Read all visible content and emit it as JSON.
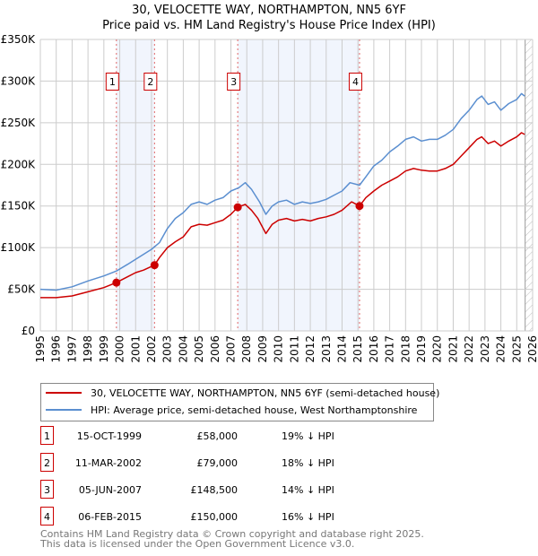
{
  "chart_data": {
    "type": "line",
    "title": "30, VELOCETTE WAY, NORTHAMPTON, NN5 6YF",
    "subtitle": "Price paid vs. HM Land Registry's House Price Index (HPI)",
    "xlabel": "",
    "ylabel": "",
    "xlim": [
      1995,
      2026
    ],
    "ylim": [
      0,
      350000
    ],
    "grid": true,
    "x_ticks": [
      "1995",
      "1996",
      "1997",
      "1998",
      "1999",
      "2000",
      "2001",
      "2002",
      "2003",
      "2004",
      "2005",
      "2006",
      "2007",
      "2008",
      "2009",
      "2010",
      "2011",
      "2012",
      "2013",
      "2014",
      "2015",
      "2016",
      "2017",
      "2018",
      "2019",
      "2020",
      "2021",
      "2022",
      "2023",
      "2024",
      "2025",
      "2026"
    ],
    "y_ticks": [
      {
        "value": 0,
        "label": "£0"
      },
      {
        "value": 50000,
        "label": "£50K"
      },
      {
        "value": 100000,
        "label": "£100K"
      },
      {
        "value": 150000,
        "label": "£150K"
      },
      {
        "value": 200000,
        "label": "£200K"
      },
      {
        "value": 250000,
        "label": "£250K"
      },
      {
        "value": 300000,
        "label": "£300K"
      },
      {
        "value": 350000,
        "label": "£350K"
      }
    ],
    "forecast_start": 2025.53,
    "series": [
      {
        "name": "30, VELOCETTE WAY, NORTHAMPTON, NN5 6YF (semi-detached house)",
        "color": "#cc0000",
        "x": [
          1995,
          1996,
          1997,
          1998,
          1999,
          1999.79,
          2000.5,
          2001,
          2001.5,
          2002.19,
          2002.5,
          2003,
          2003.5,
          2004,
          2004.5,
          2005,
          2005.5,
          2006,
          2006.5,
          2007,
          2007.43,
          2007.9,
          2008.3,
          2008.7,
          2009.2,
          2009.6,
          2010,
          2010.5,
          2011,
          2011.5,
          2012,
          2012.5,
          2013,
          2013.5,
          2014,
          2014.6,
          2015.1,
          2015.5,
          2016,
          2016.5,
          2017,
          2017.5,
          2018,
          2018.5,
          2019,
          2019.5,
          2020,
          2020.5,
          2021,
          2021.5,
          2022,
          2022.5,
          2022.8,
          2023.2,
          2023.6,
          2024,
          2024.5,
          2025,
          2025.3,
          2025.5
        ],
        "values": [
          40000,
          40000,
          42000,
          47000,
          52000,
          58000,
          65000,
          70000,
          73000,
          79000,
          88000,
          100000,
          107000,
          113000,
          125000,
          128000,
          127000,
          130000,
          133000,
          140000,
          148500,
          152000,
          145000,
          135000,
          117000,
          128000,
          133000,
          135000,
          132000,
          134000,
          132000,
          135000,
          137000,
          140000,
          145000,
          155000,
          150000,
          160000,
          168000,
          175000,
          180000,
          185000,
          192000,
          195000,
          193000,
          192000,
          192000,
          195000,
          200000,
          210000,
          220000,
          230000,
          233000,
          225000,
          228000,
          222000,
          228000,
          233000,
          238000,
          236000
        ]
      },
      {
        "name": "HPI: Average price, semi-detached house, West Northamptonshire",
        "color": "#5b8fd0",
        "x": [
          1995,
          1996,
          1997,
          1998,
          1999,
          1999.8,
          2000.5,
          2001,
          2002,
          2002.5,
          2003,
          2003.5,
          2004,
          2004.5,
          2005,
          2005.5,
          2006,
          2006.5,
          2007,
          2007.5,
          2007.9,
          2008.3,
          2008.8,
          2009.2,
          2009.6,
          2010,
          2010.5,
          2011,
          2011.5,
          2012,
          2012.5,
          2013,
          2013.5,
          2014,
          2014.5,
          2015.1,
          2015.5,
          2016,
          2016.5,
          2017,
          2017.5,
          2018,
          2018.5,
          2019,
          2019.5,
          2020,
          2020.5,
          2021,
          2021.5,
          2022,
          2022.5,
          2022.8,
          2023.2,
          2023.6,
          2024,
          2024.5,
          2025,
          2025.3,
          2025.5
        ],
        "values": [
          50000,
          49000,
          53000,
          60000,
          66000,
          72000,
          80000,
          86000,
          98000,
          106000,
          123000,
          135000,
          142000,
          152000,
          155000,
          152000,
          157000,
          160000,
          168000,
          172000,
          178000,
          170000,
          155000,
          140000,
          150000,
          155000,
          157000,
          152000,
          155000,
          153000,
          155000,
          158000,
          163000,
          168000,
          178000,
          175000,
          185000,
          198000,
          205000,
          215000,
          222000,
          230000,
          233000,
          228000,
          230000,
          230000,
          235000,
          242000,
          255000,
          265000,
          278000,
          282000,
          272000,
          275000,
          265000,
          273000,
          278000,
          285000,
          282000
        ]
      }
    ],
    "sales": [
      {
        "label": "1",
        "x": 1999.79,
        "value": 58000,
        "date": "15-OCT-1999",
        "price": "£58,000",
        "hpi": "19% ↓ HPI"
      },
      {
        "label": "2",
        "x": 2002.19,
        "value": 79000,
        "date": "11-MAR-2002",
        "price": "£79,000",
        "hpi": "18% ↓ HPI"
      },
      {
        "label": "3",
        "x": 2007.43,
        "value": 148500,
        "date": "05-JUN-2007",
        "price": "£148,500",
        "hpi": "14% ↓ HPI"
      },
      {
        "label": "4",
        "x": 2015.1,
        "value": 150000,
        "date": "06-FEB-2015",
        "price": "£150,000",
        "hpi": "16% ↓ HPI"
      }
    ],
    "shaded_ranges": [
      [
        1999.79,
        2002.19
      ],
      [
        2007.43,
        2015.1
      ]
    ],
    "legend": {
      "placement": "bottom",
      "entries": [
        "30, VELOCETTE WAY, NORTHAMPTON, NN5 6YF (semi-detached house)",
        "HPI: Average price, semi-detached house, West Northamptonshire"
      ]
    }
  },
  "footer": {
    "line1": "Contains HM Land Registry data © Crown copyright and database right 2025.",
    "line2": "This data is licensed under the Open Government Licence v3.0."
  }
}
